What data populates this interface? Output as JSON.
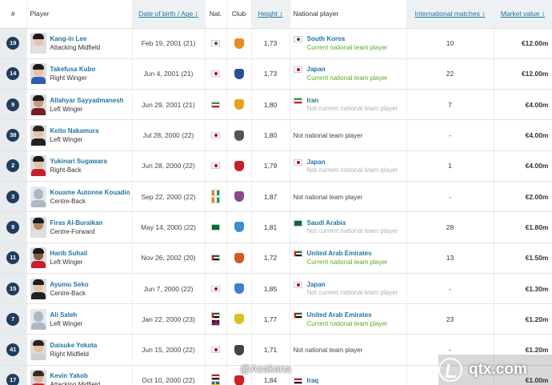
{
  "header": {
    "num": "#",
    "player": "Player",
    "dob": "Date of birth / Age",
    "nat": "Nat.",
    "club": "Club",
    "height": "Height",
    "national_player": "National player",
    "intl_matches": "International matches",
    "market_value": "Market value"
  },
  "rows": [
    {
      "num": "19",
      "name": "Kang-in Lee",
      "position": "Attacking Midfield",
      "dob": "Feb 19, 2001 (21)",
      "height": "1,73",
      "nt_name": "South Korea",
      "nt_status": "Current national team player",
      "nt_current": true,
      "matches": "10",
      "value": "€12.00m",
      "flags": [
        "kr"
      ],
      "nt_flag": "kr",
      "club_color": "#e88b22",
      "skin": "#e8c3a3",
      "hair": "#1d1a1a",
      "kit": "#e0e0e0"
    },
    {
      "num": "14",
      "name": "Takefusa Kubo",
      "position": "Right Winger",
      "dob": "Jun 4, 2001 (21)",
      "height": "1,73",
      "nt_name": "Japan",
      "nt_status": "Current national team player",
      "nt_current": true,
      "matches": "22",
      "value": "€12.00m",
      "flags": [
        "jp"
      ],
      "nt_flag": "jp",
      "club_color": "#2c4d9a",
      "skin": "#e6c0a0",
      "hair": "#1d1a1a",
      "kit": "#2d5fad"
    },
    {
      "num": "9",
      "name": "Allahyar Sayyadmanesh",
      "position": "Left Winger",
      "dob": "Jun 29, 2001 (21)",
      "height": "1,80",
      "nt_name": "Iran",
      "nt_status": "Not current national team player",
      "nt_current": false,
      "matches": "7",
      "value": "€4.00m",
      "flags": [
        "ir"
      ],
      "nt_flag": "ir",
      "club_color": "#e3a21a",
      "skin": "#c99a78",
      "hair": "#1d1a1a",
      "kit": "#7a1f1f"
    },
    {
      "num": "38",
      "name": "Keito Nakamura",
      "position": "Left Winger",
      "dob": "Jul 28, 2000 (22)",
      "height": "1,80",
      "nt_name": "Not national team player",
      "nt_status": "",
      "nt_current": null,
      "matches": "-",
      "value": "€4.00m",
      "flags": [
        "jp"
      ],
      "nt_flag": "",
      "club_color": "#555555",
      "skin": "#e6c0a0",
      "hair": "#2a2220",
      "kit": "#222222"
    },
    {
      "num": "2",
      "name": "Yukinari Sugawara",
      "position": "Right-Back",
      "dob": "Jun 28, 2000 (22)",
      "height": "1,79",
      "nt_name": "Japan",
      "nt_status": "Not current national team player",
      "nt_current": false,
      "matches": "1",
      "value": "€4.00m",
      "flags": [
        "jp"
      ],
      "nt_flag": "jp",
      "club_color": "#c8202a",
      "skin": "#e6c0a0",
      "hair": "#1d1a1a",
      "kit": "#c8202a"
    },
    {
      "num": "3",
      "name": "Kouame Autonne Kouadio",
      "position": "Centre-Back",
      "dob": "Sep 22, 2000 (22)",
      "height": "1,87",
      "nt_name": "Not national team player",
      "nt_status": "",
      "nt_current": null,
      "matches": "-",
      "value": "€2.00m",
      "flags": [
        "ci",
        "ci"
      ],
      "nt_flag": "",
      "club_color": "#8a4a8a",
      "skin": "",
      "hair": "",
      "kit": "",
      "silhouette": true
    },
    {
      "num": "9",
      "name": "Firas Al-Buraikan",
      "position": "Centre-Forward",
      "dob": "May 14, 2000 (22)",
      "height": "1,81",
      "nt_name": "Saudi Arabia",
      "nt_status": "Not current national team player",
      "nt_current": false,
      "matches": "28",
      "value": "€1.80m",
      "flags": [
        "sa"
      ],
      "nt_flag": "sa",
      "club_color": "#3a8fd6",
      "skin": "#b88862",
      "hair": "#1d1a1a",
      "kit": "#e0e0e0"
    },
    {
      "num": "11",
      "name": "Harib Suhail",
      "position": "Left Winger",
      "dob": "Nov 26, 2002 (20)",
      "height": "1,72",
      "nt_name": "United Arab Emirates",
      "nt_status": "Current national team player",
      "nt_current": true,
      "matches": "13",
      "value": "€1.50m",
      "flags": [
        "ae"
      ],
      "nt_flag": "ae",
      "club_color": "#d55a1e",
      "skin": "#8a5a3a",
      "hair": "#1d1a1a",
      "kit": "#c8202a"
    },
    {
      "num": "15",
      "name": "Ayumu Seko",
      "position": "Centre-Back",
      "dob": "Jun 7, 2000 (22)",
      "height": "1,85",
      "nt_name": "Japan",
      "nt_status": "Not current national team player",
      "nt_current": false,
      "matches": "-",
      "value": "€1.30m",
      "flags": [
        "jp"
      ],
      "nt_flag": "jp",
      "club_color": "#3f7fd0",
      "skin": "#e6c0a0",
      "hair": "#1d1a1a",
      "kit": "#222222"
    },
    {
      "num": "7",
      "name": "Ali Saleh",
      "position": "Left Winger",
      "dob": "Jan 22, 2000 (23)",
      "height": "1,77",
      "nt_name": "United Arab Emirates",
      "nt_status": "Current national team player",
      "nt_current": true,
      "matches": "23",
      "value": "€1.20m",
      "flags": [
        "ae",
        "uk"
      ],
      "nt_flag": "ae",
      "club_color": "#d9c21a",
      "skin": "",
      "hair": "",
      "kit": "",
      "silhouette": true
    },
    {
      "num": "41",
      "name": "Daisuke Yokota",
      "position": "Right Midfield",
      "dob": "Jun 15, 2000 (22)",
      "height": "1,71",
      "nt_name": "Not national team player",
      "nt_status": "",
      "nt_current": null,
      "matches": "-",
      "value": "€1.20m",
      "flags": [
        "jp"
      ],
      "nt_flag": "",
      "club_color": "#444444",
      "skin": "#e6c0a0",
      "hair": "#2a2220",
      "kit": "#d0d0d0"
    },
    {
      "num": "17",
      "name": "Kevin Yakob",
      "position": "Attacking Midfield",
      "dob": "Oct 10, 2000 (22)",
      "height": "1,84",
      "nt_name": "Iraq",
      "nt_status": "",
      "nt_current": false,
      "matches": "",
      "value": "€1.00m",
      "flags": [
        "iq",
        "se"
      ],
      "nt_flag": "iq",
      "club_color": "#d01f25",
      "skin": "#d9b090",
      "hair": "#3a2a20",
      "kit": "#d01f25"
    }
  ],
  "watermark": {
    "left": "@Asakana",
    "right": "qtx.com"
  },
  "colors": {
    "accent_link": "#1d75a3",
    "current_green": "#5cad1f",
    "badge_bg": "#1f3d5c",
    "number_cell_bg": "#e8ecef"
  }
}
